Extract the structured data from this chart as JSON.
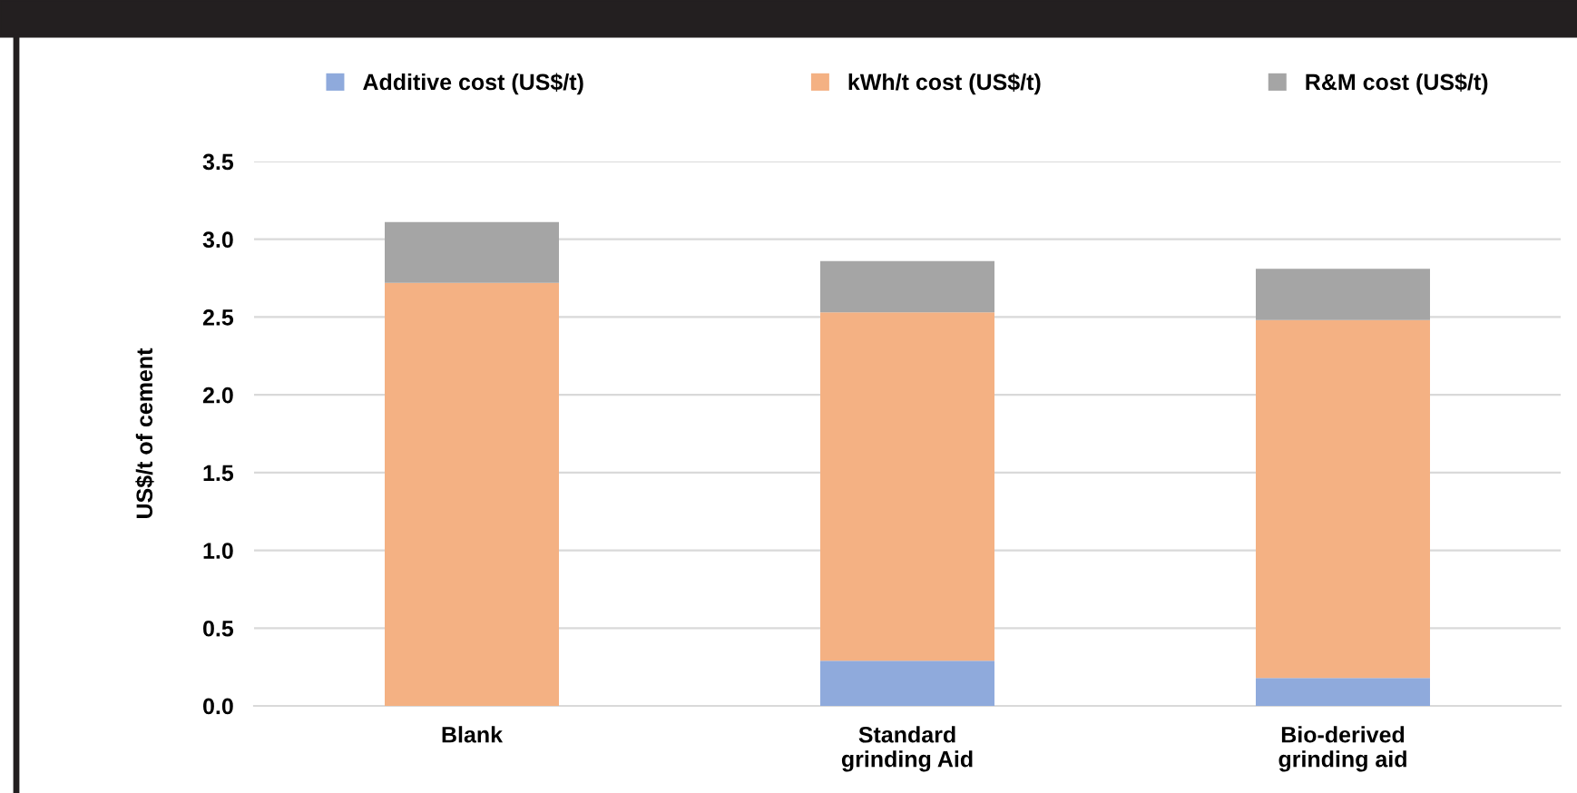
{
  "chart_data": {
    "type": "bar",
    "stacked": true,
    "ylabel": "US$/t of cement",
    "categories": [
      "Blank",
      "Standard\ngrinding Aid",
      "Bio-derived\ngrinding aid"
    ],
    "series": [
      {
        "name": "Additive cost (US$/t)",
        "color": "#8faadc",
        "values": [
          0,
          0.29,
          0.18
        ]
      },
      {
        "name": "kWh/t cost (US$/t)",
        "color": "#f4b183",
        "values": [
          2.72,
          2.24,
          2.3
        ]
      },
      {
        "name": "R&M cost (US$/t)",
        "color": "#a5a5a5",
        "values": [
          0.39,
          0.33,
          0.33
        ]
      }
    ],
    "ylim": [
      0,
      3.5
    ],
    "yticks": [
      {
        "value": 0,
        "label": "0.0"
      },
      0.5,
      {
        "value": 1,
        "label": "1.0"
      },
      1.5,
      {
        "value": 2,
        "label": "2.0"
      },
      2.5,
      {
        "value": 3,
        "label": "3.0"
      },
      3.5
    ],
    "grid": "y",
    "legend": "top"
  }
}
